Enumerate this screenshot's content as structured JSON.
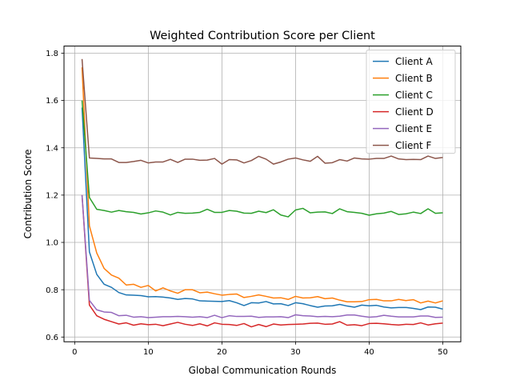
{
  "chart_data": {
    "type": "line",
    "title": "Weighted Contribution Score per Client",
    "xlabel": "Global Communication Rounds",
    "ylabel": "Contribution Score",
    "xlim": [
      -1.45,
      52.45
    ],
    "ylim": [
      0.58,
      1.83
    ],
    "xticks": [
      0,
      10,
      20,
      30,
      40,
      50
    ],
    "yticks": [
      0.6,
      0.8,
      1.0,
      1.2,
      1.4,
      1.6,
      1.8
    ],
    "xtick_labels": [
      "0",
      "10",
      "20",
      "30",
      "40",
      "50"
    ],
    "ytick_labels": [
      "0.6",
      "0.8",
      "1.0",
      "1.2",
      "1.4",
      "1.6",
      "1.8"
    ],
    "grid": true,
    "legend_position": "top-right",
    "x": [
      1,
      2,
      3,
      4,
      5,
      6,
      7,
      8,
      9,
      10,
      11,
      12,
      13,
      14,
      15,
      16,
      17,
      18,
      19,
      20,
      21,
      22,
      23,
      24,
      25,
      26,
      27,
      28,
      29,
      30,
      31,
      32,
      33,
      34,
      35,
      36,
      37,
      38,
      39,
      40,
      41,
      42,
      43,
      44,
      45,
      46,
      47,
      48,
      49,
      50
    ],
    "series": [
      {
        "name": "Client A",
        "color": "#1f77b4",
        "values": [
          1.57,
          0.96,
          0.865,
          0.823,
          0.81,
          0.788,
          0.778,
          0.777,
          0.775,
          0.77,
          0.771,
          0.769,
          0.765,
          0.759,
          0.763,
          0.761,
          0.753,
          0.752,
          0.751,
          0.75,
          0.754,
          0.745,
          0.733,
          0.745,
          0.744,
          0.75,
          0.74,
          0.741,
          0.733,
          0.745,
          0.741,
          0.733,
          0.726,
          0.731,
          0.732,
          0.738,
          0.731,
          0.726,
          0.735,
          0.732,
          0.734,
          0.727,
          0.723,
          0.725,
          0.725,
          0.721,
          0.716,
          0.727,
          0.726,
          0.718
        ]
      },
      {
        "name": "Client B",
        "color": "#ff7f0e",
        "values": [
          1.74,
          1.07,
          0.955,
          0.89,
          0.862,
          0.849,
          0.82,
          0.823,
          0.81,
          0.818,
          0.795,
          0.808,
          0.795,
          0.785,
          0.8,
          0.8,
          0.787,
          0.79,
          0.783,
          0.777,
          0.78,
          0.782,
          0.767,
          0.772,
          0.778,
          0.772,
          0.765,
          0.766,
          0.759,
          0.772,
          0.765,
          0.766,
          0.771,
          0.762,
          0.765,
          0.756,
          0.749,
          0.749,
          0.75,
          0.758,
          0.759,
          0.753,
          0.753,
          0.759,
          0.754,
          0.758,
          0.744,
          0.752,
          0.744,
          0.753
        ]
      },
      {
        "name": "Client C",
        "color": "#2ca02c",
        "values": [
          1.6,
          1.19,
          1.14,
          1.135,
          1.128,
          1.135,
          1.13,
          1.127,
          1.12,
          1.125,
          1.133,
          1.128,
          1.116,
          1.127,
          1.123,
          1.124,
          1.127,
          1.14,
          1.127,
          1.127,
          1.135,
          1.132,
          1.124,
          1.123,
          1.132,
          1.126,
          1.138,
          1.116,
          1.108,
          1.137,
          1.144,
          1.125,
          1.128,
          1.129,
          1.122,
          1.142,
          1.13,
          1.127,
          1.123,
          1.115,
          1.121,
          1.124,
          1.131,
          1.118,
          1.121,
          1.128,
          1.122,
          1.142,
          1.123,
          1.125
        ]
      },
      {
        "name": "Client D",
        "color": "#d62728",
        "values": [
          1.2,
          0.735,
          0.69,
          0.675,
          0.665,
          0.655,
          0.66,
          0.65,
          0.656,
          0.652,
          0.654,
          0.648,
          0.655,
          0.662,
          0.654,
          0.649,
          0.656,
          0.647,
          0.66,
          0.654,
          0.653,
          0.649,
          0.657,
          0.643,
          0.653,
          0.644,
          0.655,
          0.651,
          0.653,
          0.654,
          0.655,
          0.658,
          0.659,
          0.654,
          0.655,
          0.665,
          0.65,
          0.652,
          0.648,
          0.657,
          0.658,
          0.656,
          0.653,
          0.651,
          0.654,
          0.653,
          0.66,
          0.651,
          0.656,
          0.659
        ]
      },
      {
        "name": "Client E",
        "color": "#9467bd",
        "values": [
          1.2,
          0.755,
          0.715,
          0.706,
          0.704,
          0.69,
          0.692,
          0.684,
          0.686,
          0.682,
          0.684,
          0.686,
          0.686,
          0.687,
          0.686,
          0.684,
          0.686,
          0.682,
          0.692,
          0.682,
          0.69,
          0.687,
          0.687,
          0.688,
          0.683,
          0.685,
          0.685,
          0.686,
          0.682,
          0.694,
          0.69,
          0.689,
          0.686,
          0.687,
          0.686,
          0.688,
          0.693,
          0.693,
          0.688,
          0.684,
          0.686,
          0.692,
          0.688,
          0.685,
          0.685,
          0.685,
          0.689,
          0.689,
          0.683,
          0.684
        ]
      },
      {
        "name": "Client F",
        "color": "#8c564b",
        "values": [
          1.775,
          1.357,
          1.355,
          1.353,
          1.353,
          1.338,
          1.338,
          1.342,
          1.347,
          1.336,
          1.34,
          1.34,
          1.351,
          1.338,
          1.352,
          1.352,
          1.347,
          1.348,
          1.355,
          1.331,
          1.35,
          1.349,
          1.336,
          1.346,
          1.364,
          1.352,
          1.331,
          1.34,
          1.352,
          1.357,
          1.349,
          1.343,
          1.364,
          1.335,
          1.337,
          1.35,
          1.344,
          1.357,
          1.353,
          1.352,
          1.355,
          1.355,
          1.365,
          1.353,
          1.35,
          1.351,
          1.35,
          1.365,
          1.355,
          1.359
        ]
      }
    ]
  }
}
